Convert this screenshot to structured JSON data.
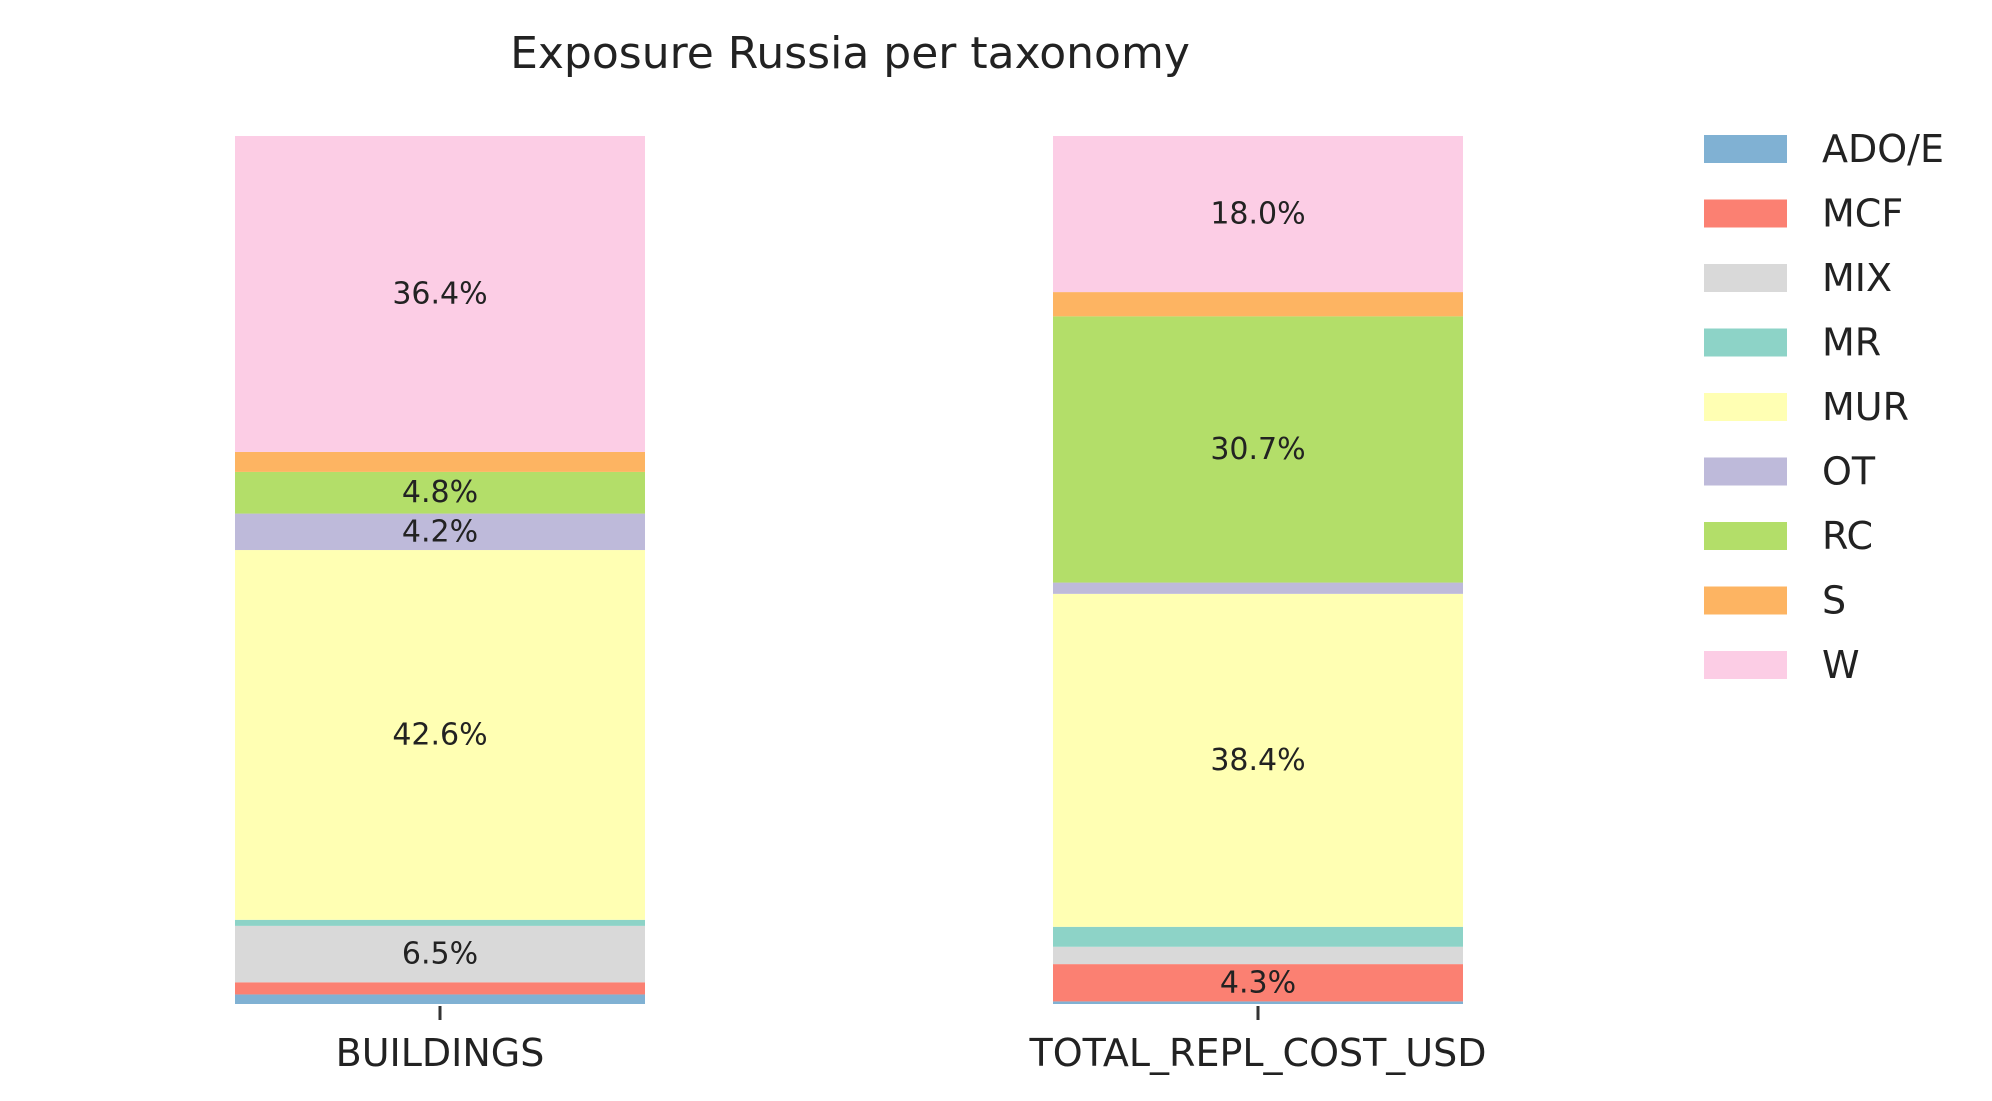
{
  "chart_data": {
    "type": "bar",
    "stacked": true,
    "normalized": true,
    "title": "Exposure Russia per taxonomy",
    "categories": [
      "BUILDINGS",
      "TOTAL_REPL_COST_USD"
    ],
    "ylim": [
      0,
      100
    ],
    "grid": false,
    "legend_position": "right",
    "series": [
      {
        "name": "ADO/E",
        "color": "#80b1d3",
        "values": [
          1.1,
          0.3
        ]
      },
      {
        "name": "MCF",
        "color": "#fb8072",
        "values": [
          1.4,
          4.3
        ]
      },
      {
        "name": "MIX",
        "color": "#d9d9d9",
        "values": [
          6.5,
          2.0
        ]
      },
      {
        "name": "MR",
        "color": "#8dd3c7",
        "values": [
          0.7,
          2.3
        ]
      },
      {
        "name": "MUR",
        "color": "#ffffb3",
        "values": [
          42.6,
          38.4
        ]
      },
      {
        "name": "OT",
        "color": "#bebada",
        "values": [
          4.2,
          1.3
        ]
      },
      {
        "name": "RC",
        "color": "#b3de69",
        "values": [
          4.8,
          30.7
        ]
      },
      {
        "name": "S",
        "color": "#fdb462",
        "values": [
          2.3,
          2.8
        ]
      },
      {
        "name": "W",
        "color": "#fccde5",
        "values": [
          36.4,
          18.0
        ]
      }
    ],
    "data_labels": [
      {
        "category": 0,
        "series": "MIX",
        "text": "6.5%"
      },
      {
        "category": 0,
        "series": "MUR",
        "text": "42.6%"
      },
      {
        "category": 0,
        "series": "OT",
        "text": "4.2%"
      },
      {
        "category": 0,
        "series": "RC",
        "text": "4.8%"
      },
      {
        "category": 0,
        "series": "W",
        "text": "36.4%"
      },
      {
        "category": 1,
        "series": "MCF",
        "text": "4.3%"
      },
      {
        "category": 1,
        "series": "MUR",
        "text": "38.4%"
      },
      {
        "category": 1,
        "series": "RC",
        "text": "30.7%"
      },
      {
        "category": 1,
        "series": "W",
        "text": "18.0%"
      }
    ]
  }
}
